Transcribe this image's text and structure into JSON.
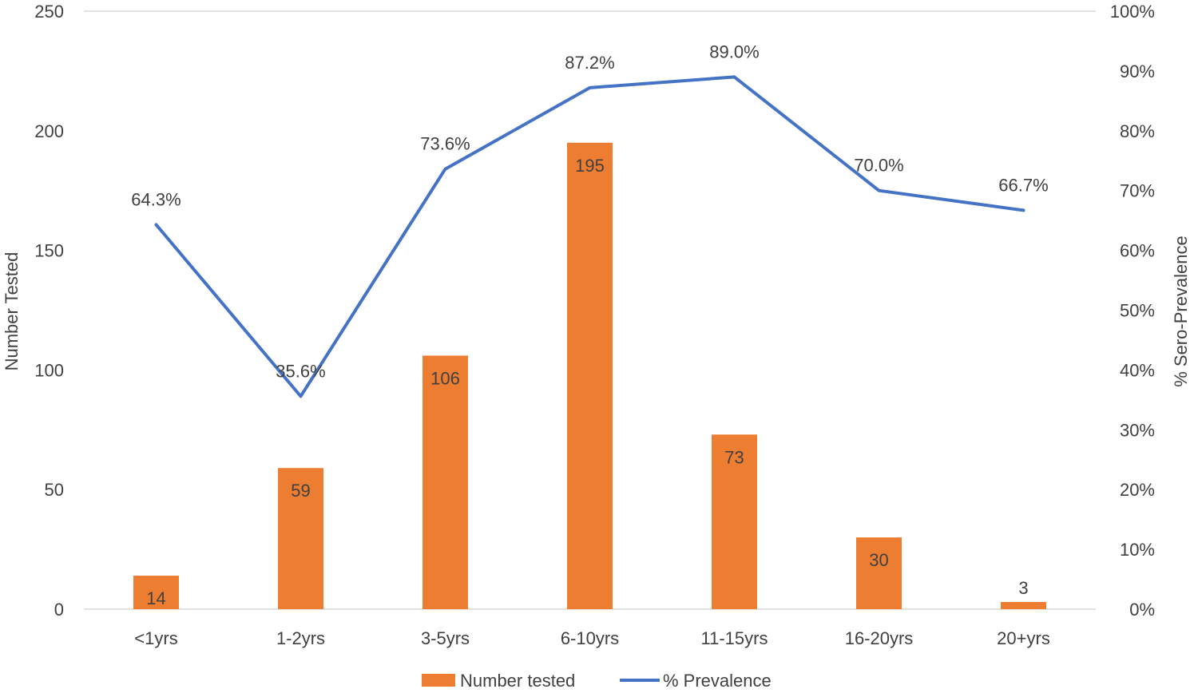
{
  "chart_data": {
    "type": "bar",
    "title": "",
    "categories": [
      "<1yrs",
      "1-2yrs",
      "3-5yrs",
      "6-10yrs",
      "11-15yrs",
      "16-20yrs",
      "20+yrs"
    ],
    "series": [
      {
        "name": "Number tested",
        "type": "bar",
        "axis": "left",
        "color": "#ED7D31",
        "values": [
          14,
          59,
          106,
          195,
          73,
          30,
          3
        ],
        "labels": [
          "14",
          "59",
          "106",
          "195",
          "73",
          "30",
          "3"
        ]
      },
      {
        "name": "% Prevalence",
        "type": "line",
        "axis": "right",
        "color": "#4472C4",
        "values": [
          64.3,
          35.6,
          73.6,
          87.2,
          89.0,
          70.0,
          66.7
        ],
        "labels": [
          "64.3%",
          "35.6%",
          "73.6%",
          "87.2%",
          "89.0%",
          "70.0%",
          "66.7%"
        ]
      }
    ],
    "y_left": {
      "label": "Number Tested",
      "min": 0,
      "max": 250,
      "ticks": [
        0,
        50,
        100,
        150,
        200,
        250
      ],
      "tick_labels": [
        "0",
        "50",
        "100",
        "150",
        "200",
        "250"
      ]
    },
    "y_right": {
      "label": "% Sero-Prevalence",
      "min": 0,
      "max": 100,
      "ticks": [
        0,
        10,
        20,
        30,
        40,
        50,
        60,
        70,
        80,
        90,
        100
      ],
      "tick_labels": [
        "0%",
        "10%",
        "20%",
        "30%",
        "40%",
        "50%",
        "60%",
        "70%",
        "80%",
        "90%",
        "100%"
      ]
    },
    "grid": "top-line-only",
    "legend": "bottom-center"
  }
}
